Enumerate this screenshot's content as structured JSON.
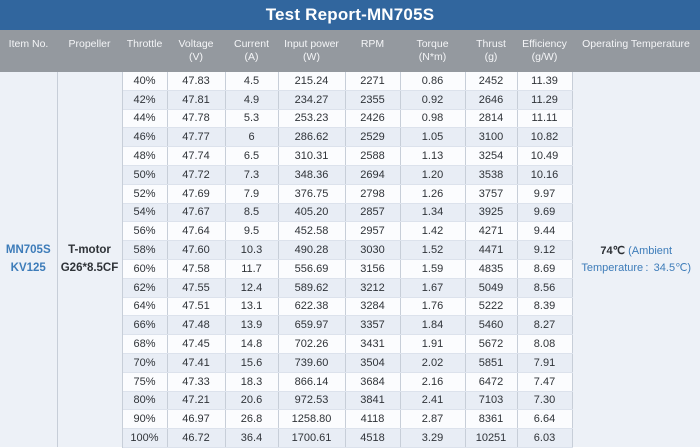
{
  "title": "Test Report-MN705S",
  "columns": [
    {
      "label": "Item No.",
      "unit": ""
    },
    {
      "label": "Propeller",
      "unit": ""
    },
    {
      "label": "Throttle",
      "unit": ""
    },
    {
      "label": "Voltage",
      "unit": "(V)"
    },
    {
      "label": "Current",
      "unit": "(A)"
    },
    {
      "label": "Input power",
      "unit": "(W)"
    },
    {
      "label": "RPM",
      "unit": ""
    },
    {
      "label": "Torque",
      "unit": "(N*m)"
    },
    {
      "label": "Thrust",
      "unit": "(g)"
    },
    {
      "label": "Efficiency",
      "unit": "(g/W)"
    },
    {
      "label": "Operating Temperature",
      "unit": ""
    }
  ],
  "item": {
    "line1": "MN705S",
    "line2": "KV125"
  },
  "propeller": {
    "line1": "T-motor",
    "line2": "G26*8.5CF"
  },
  "operating_temperature": {
    "value": "74℃",
    "ambient_line1": "(Ambient",
    "ambient_line2": "Temperature :  34.5℃)"
  },
  "rows": [
    {
      "throttle": "40%",
      "voltage": "47.83",
      "current": "4.5",
      "input_power": "215.24",
      "rpm": "2271",
      "torque": "0.86",
      "thrust": "2452",
      "efficiency": "11.39"
    },
    {
      "throttle": "42%",
      "voltage": "47.81",
      "current": "4.9",
      "input_power": "234.27",
      "rpm": "2355",
      "torque": "0.92",
      "thrust": "2646",
      "efficiency": "11.29"
    },
    {
      "throttle": "44%",
      "voltage": "47.78",
      "current": "5.3",
      "input_power": "253.23",
      "rpm": "2426",
      "torque": "0.98",
      "thrust": "2814",
      "efficiency": "11.11"
    },
    {
      "throttle": "46%",
      "voltage": "47.77",
      "current": "6",
      "input_power": "286.62",
      "rpm": "2529",
      "torque": "1.05",
      "thrust": "3100",
      "efficiency": "10.82"
    },
    {
      "throttle": "48%",
      "voltage": "47.74",
      "current": "6.5",
      "input_power": "310.31",
      "rpm": "2588",
      "torque": "1.13",
      "thrust": "3254",
      "efficiency": "10.49"
    },
    {
      "throttle": "50%",
      "voltage": "47.72",
      "current": "7.3",
      "input_power": "348.36",
      "rpm": "2694",
      "torque": "1.20",
      "thrust": "3538",
      "efficiency": "10.16"
    },
    {
      "throttle": "52%",
      "voltage": "47.69",
      "current": "7.9",
      "input_power": "376.75",
      "rpm": "2798",
      "torque": "1.26",
      "thrust": "3757",
      "efficiency": "9.97"
    },
    {
      "throttle": "54%",
      "voltage": "47.67",
      "current": "8.5",
      "input_power": "405.20",
      "rpm": "2857",
      "torque": "1.34",
      "thrust": "3925",
      "efficiency": "9.69"
    },
    {
      "throttle": "56%",
      "voltage": "47.64",
      "current": "9.5",
      "input_power": "452.58",
      "rpm": "2957",
      "torque": "1.42",
      "thrust": "4271",
      "efficiency": "9.44"
    },
    {
      "throttle": "58%",
      "voltage": "47.60",
      "current": "10.3",
      "input_power": "490.28",
      "rpm": "3030",
      "torque": "1.52",
      "thrust": "4471",
      "efficiency": "9.12"
    },
    {
      "throttle": "60%",
      "voltage": "47.58",
      "current": "11.7",
      "input_power": "556.69",
      "rpm": "3156",
      "torque": "1.59",
      "thrust": "4835",
      "efficiency": "8.69"
    },
    {
      "throttle": "62%",
      "voltage": "47.55",
      "current": "12.4",
      "input_power": "589.62",
      "rpm": "3212",
      "torque": "1.67",
      "thrust": "5049",
      "efficiency": "8.56"
    },
    {
      "throttle": "64%",
      "voltage": "47.51",
      "current": "13.1",
      "input_power": "622.38",
      "rpm": "3284",
      "torque": "1.76",
      "thrust": "5222",
      "efficiency": "8.39"
    },
    {
      "throttle": "66%",
      "voltage": "47.48",
      "current": "13.9",
      "input_power": "659.97",
      "rpm": "3357",
      "torque": "1.84",
      "thrust": "5460",
      "efficiency": "8.27"
    },
    {
      "throttle": "68%",
      "voltage": "47.45",
      "current": "14.8",
      "input_power": "702.26",
      "rpm": "3431",
      "torque": "1.91",
      "thrust": "5672",
      "efficiency": "8.08"
    },
    {
      "throttle": "70%",
      "voltage": "47.41",
      "current": "15.6",
      "input_power": "739.60",
      "rpm": "3504",
      "torque": "2.02",
      "thrust": "5851",
      "efficiency": "7.91"
    },
    {
      "throttle": "75%",
      "voltage": "47.33",
      "current": "18.3",
      "input_power": "866.14",
      "rpm": "3684",
      "torque": "2.16",
      "thrust": "6472",
      "efficiency": "7.47"
    },
    {
      "throttle": "80%",
      "voltage": "47.21",
      "current": "20.6",
      "input_power": "972.53",
      "rpm": "3841",
      "torque": "2.41",
      "thrust": "7103",
      "efficiency": "7.30"
    },
    {
      "throttle": "90%",
      "voltage": "46.97",
      "current": "26.8",
      "input_power": "1258.80",
      "rpm": "4118",
      "torque": "2.87",
      "thrust": "8361",
      "efficiency": "6.64"
    },
    {
      "throttle": "100%",
      "voltage": "46.72",
      "current": "36.4",
      "input_power": "1700.61",
      "rpm": "4518",
      "torque": "3.29",
      "thrust": "10251",
      "efficiency": "6.03"
    }
  ],
  "colors": {
    "title_bar": "#31669E",
    "header_bg": "#94999F",
    "stripe": "#E8EDF5",
    "row_white": "#FBFCFE",
    "merged_bg": "#EDF1F7",
    "border_v": "#C7CED8",
    "border_h": "#DCE2EC",
    "blue_text": "#3D7CB9",
    "dark_text": "#2F3338",
    "header_text": "#F4F5F7"
  }
}
